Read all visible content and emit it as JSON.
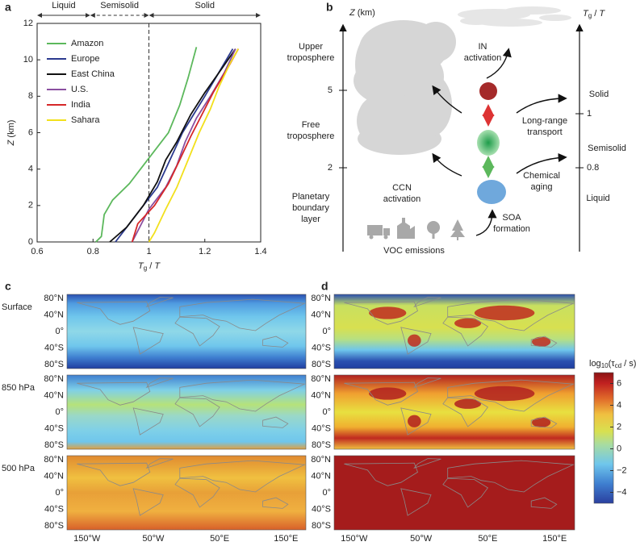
{
  "chart_data": {
    "type": "line",
    "label": "a",
    "x_label": [
      {
        "text": "T",
        "italic": true
      },
      {
        "text": "g",
        "sub": true
      },
      {
        "text": " / "
      },
      {
        "text": "T",
        "italic": true
      }
    ],
    "y_label": [
      {
        "text": "Z",
        "italic": true
      },
      {
        "text": " (km)"
      }
    ],
    "xlim": [
      0.6,
      1.4
    ],
    "xticks": [
      0.6,
      0.8,
      1,
      1.2,
      1.4
    ],
    "ylim": [
      0,
      12
    ],
    "yticks": [
      0,
      2,
      4,
      6,
      8,
      10,
      12
    ],
    "threshold": 1,
    "phases": [
      {
        "label": "Liquid",
        "range": [
          0.6,
          0.79
        ]
      },
      {
        "label": "Semisolid",
        "range": [
          0.79,
          1
        ],
        "dashed": true
      },
      {
        "label": "Solid",
        "range": [
          1,
          1.4
        ]
      }
    ],
    "series": [
      {
        "name": "Amazon",
        "color": "#5cb85c",
        "x": [
          0.81,
          0.83,
          0.84,
          0.87,
          0.93,
          0.98,
          1.02,
          1.07,
          1.11,
          1.14,
          1.17
        ],
        "values": [
          0,
          0.3,
          1.5,
          2.3,
          3.2,
          4.2,
          5,
          6,
          7.5,
          9,
          10.7
        ]
      },
      {
        "name": "Europe",
        "color": "#2b3a8f",
        "x": [
          0.88,
          0.93,
          0.98,
          1.03,
          1.06,
          1.09,
          1.12,
          1.16,
          1.2,
          1.25,
          1.3
        ],
        "values": [
          0,
          1,
          2,
          3,
          4,
          5,
          6,
          7,
          8,
          9.3,
          10.6
        ]
      },
      {
        "name": "East China",
        "color": "#111111",
        "x": [
          0.86,
          0.92,
          0.98,
          1.03,
          1.06,
          1.1,
          1.15,
          1.2,
          1.26,
          1.31
        ],
        "values": [
          0,
          0.8,
          2,
          3.3,
          4.5,
          5.5,
          7,
          8.2,
          9.5,
          10.6
        ]
      },
      {
        "name": "U.S.",
        "color": "#8a4fa0",
        "x": [
          0.94,
          0.96,
          1.0,
          1.06,
          1.1,
          1.13,
          1.17,
          1.22,
          1.27,
          1.31
        ],
        "values": [
          0,
          0.6,
          1.8,
          3,
          4.2,
          5.5,
          6.8,
          8,
          9.3,
          10.6
        ]
      },
      {
        "name": "India",
        "color": "#d62728",
        "x": [
          0.94,
          0.96,
          1.02,
          1.07,
          1.11,
          1.15,
          1.19,
          1.23,
          1.28,
          1.32
        ],
        "values": [
          0,
          1,
          2,
          3.2,
          4.5,
          5.8,
          7,
          8.2,
          9.5,
          10.6
        ]
      },
      {
        "name": "Sahara",
        "color": "#f2e01c",
        "x": [
          1.0,
          1.02,
          1.06,
          1.1,
          1.14,
          1.18,
          1.22,
          1.25,
          1.29,
          1.32
        ],
        "values": [
          0,
          0.5,
          1.8,
          3,
          4.5,
          6,
          7.3,
          8.5,
          9.8,
          10.6
        ]
      }
    ]
  },
  "diagram": {
    "label": "b",
    "z_title": [
      {
        "text": "Z",
        "italic": true
      },
      {
        "text": " (km)"
      }
    ],
    "z_ticks": [
      5,
      2
    ],
    "layers": [
      [
        "Upper",
        "troposphere"
      ],
      [
        "Free",
        "troposphere"
      ],
      [
        "Planetary",
        "boundary",
        "layer"
      ]
    ],
    "in_activation": [
      "IN",
      "activation"
    ],
    "ccn_activation": [
      "CCN",
      "activation"
    ],
    "transport": [
      "Long-range",
      "transport"
    ],
    "aging": [
      "Chemical",
      "aging"
    ],
    "soa": [
      "SOA",
      "formation"
    ],
    "voc": "VOC emissions",
    "phase_title": [
      {
        "text": "T",
        "italic": true
      },
      {
        "text": "g",
        "sub": true
      },
      {
        "text": " / "
      },
      {
        "text": "T",
        "italic": true
      }
    ],
    "phases": [
      "Solid",
      "Semisolid",
      "Liquid"
    ],
    "phase_ticks": [
      1,
      0.8
    ]
  },
  "maps": {
    "panels": [
      "c",
      "d"
    ],
    "levels": [
      "Surface",
      "850 hPa",
      "500 hPa"
    ],
    "xlim": [
      -180,
      180
    ],
    "ylim": [
      -90,
      90
    ],
    "lat_ticks": [
      {
        "value": 80,
        "label": "80°N"
      },
      {
        "value": 40,
        "label": "40°N"
      },
      {
        "value": 0,
        "label": "0°"
      },
      {
        "value": -40,
        "label": "40°S"
      },
      {
        "value": -80,
        "label": "80°S"
      }
    ],
    "lon_ticks": [
      {
        "value": -150,
        "label": "150°W"
      },
      {
        "value": -50,
        "label": "50°W"
      },
      {
        "value": 50,
        "label": "50°E"
      },
      {
        "value": 150,
        "label": "150°E"
      }
    ]
  },
  "colorbar": {
    "title": [
      {
        "text": "log"
      },
      {
        "text": "10",
        "sub": true
      },
      {
        "text": "(τ"
      },
      {
        "text": "cd",
        "sub": true
      },
      {
        "text": " / s)"
      }
    ],
    "clim": [
      -5,
      7
    ],
    "ticks": [
      6,
      4,
      2,
      0,
      {
        "value": -2,
        "label": "−2"
      },
      {
        "value": -4,
        "label": "−4"
      }
    ]
  }
}
